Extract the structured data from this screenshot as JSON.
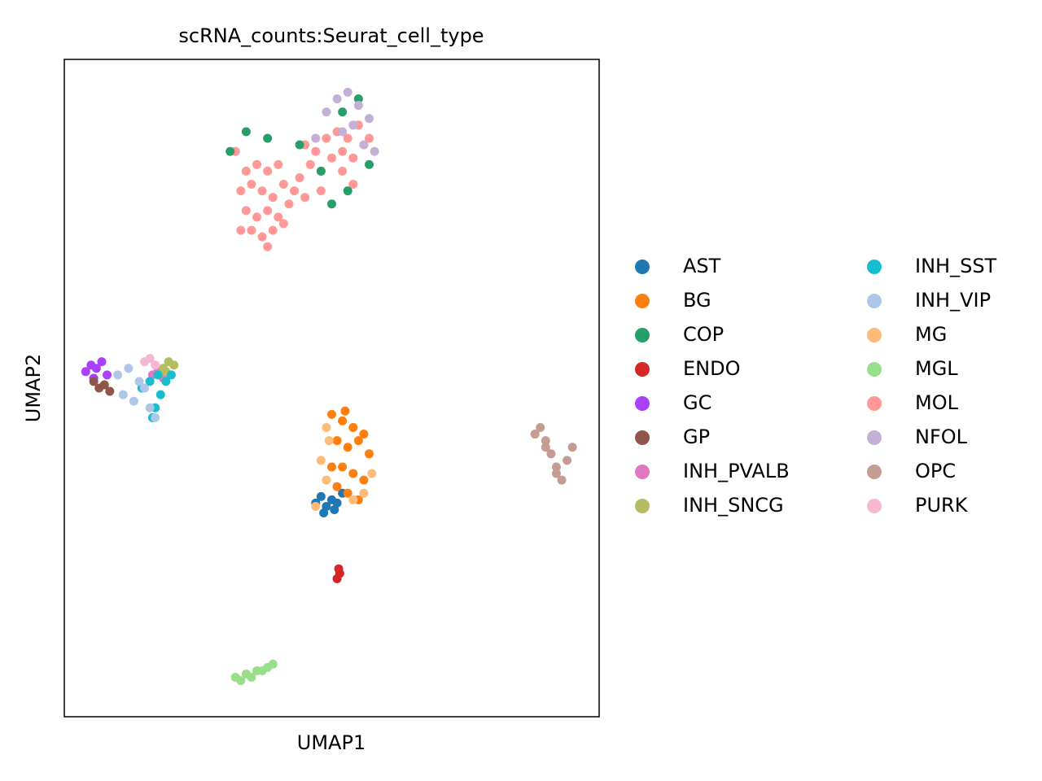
{
  "chart_data": {
    "type": "scatter",
    "title": "scRNA_counts:Seurat_cell_type",
    "x_label": "UMAP1",
    "y_label": "UMAP2",
    "xlim": [
      0,
      100
    ],
    "ylim": [
      0,
      100
    ],
    "legend": "right",
    "series": [
      {
        "name": "AST",
        "color": "#1f77b4",
        "x": [
          47,
          48,
          49,
          50,
          51,
          52,
          48.5,
          50.5
        ],
        "values": [
          32.5,
          33.5,
          32,
          33,
          32.5,
          34,
          31,
          31.5
        ]
      },
      {
        "name": "BG",
        "color": "#ff7f0e",
        "x": [
          50,
          52,
          54,
          56,
          51,
          53,
          55,
          57,
          50,
          52,
          54,
          56,
          51,
          53,
          55,
          52.5
        ],
        "values": [
          46,
          45,
          44,
          43,
          42,
          41,
          42,
          40,
          38,
          38,
          37,
          36,
          35,
          34,
          33,
          46.5
        ]
      },
      {
        "name": "COP",
        "color": "#279e68",
        "x": [
          31,
          34,
          38,
          44,
          48,
          52,
          55,
          57,
          53,
          50
        ],
        "values": [
          86,
          89,
          88,
          87,
          83,
          92,
          94,
          84,
          80,
          78
        ]
      },
      {
        "name": "ENDO",
        "color": "#d62728",
        "x": [
          51,
          51.5,
          51.3
        ],
        "values": [
          21,
          21.8,
          22.5
        ]
      },
      {
        "name": "GC",
        "color": "#aa40fc",
        "x": [
          4,
          5,
          6,
          7,
          8,
          5.5
        ],
        "values": [
          52.5,
          53.5,
          53,
          54,
          52,
          51.5
        ]
      },
      {
        "name": "GP",
        "color": "#8c564b",
        "x": [
          5.5,
          6.5,
          7.5,
          8.5
        ],
        "values": [
          51,
          50,
          50.5,
          49.5
        ]
      },
      {
        "name": "INH_PVALB",
        "color": "#e377c2",
        "x": [
          16.5,
          17.5,
          18.5
        ],
        "values": [
          52,
          52.5,
          51.5
        ]
      },
      {
        "name": "INH_SNCG",
        "color": "#b5bd61",
        "x": [
          18.5,
          19.5,
          20.5,
          19
        ],
        "values": [
          53,
          54,
          53.5,
          52.5
        ]
      },
      {
        "name": "INH_SST",
        "color": "#17becf",
        "x": [
          14.5,
          16,
          17.5,
          19,
          20,
          18,
          17,
          16.5
        ],
        "values": [
          50,
          51,
          52,
          51,
          52,
          49,
          47,
          45.5
        ]
      },
      {
        "name": "INH_VIP",
        "color": "#aec7e8",
        "x": [
          10,
          12,
          14,
          11,
          13,
          15,
          16,
          17
        ],
        "values": [
          52,
          53,
          51,
          49,
          48,
          50,
          47,
          45.5
        ]
      },
      {
        "name": "MG",
        "color": "#ffbb78",
        "x": [
          49,
          49.5,
          48,
          57.5,
          56,
          54,
          49,
          47
        ],
        "values": [
          44,
          42,
          39,
          37,
          34,
          33,
          36,
          32
        ]
      },
      {
        "name": "MGL",
        "color": "#98df8a",
        "x": [
          32,
          33,
          34,
          35,
          36,
          37,
          38,
          39
        ],
        "values": [
          6,
          5.5,
          6.5,
          6,
          7,
          7,
          7.5,
          8
        ]
      },
      {
        "name": "MOL",
        "color": "#ff9896",
        "x": [
          33,
          35,
          37,
          39,
          41,
          34,
          36,
          38,
          40,
          42,
          33,
          35,
          37,
          39,
          41,
          34,
          36,
          38,
          40,
          32,
          44,
          46,
          48,
          50,
          52,
          54,
          56,
          45,
          47,
          49,
          51,
          53,
          55,
          57,
          43,
          45,
          52,
          54,
          48,
          38
        ],
        "values": [
          74,
          74,
          73,
          74,
          75,
          77,
          76,
          77,
          76,
          78,
          80,
          81,
          80,
          79,
          81,
          83,
          84,
          83,
          84,
          86,
          82,
          84,
          83,
          85,
          86,
          85,
          87,
          87,
          86,
          88,
          89,
          88,
          90,
          88,
          80,
          79,
          83,
          81,
          80,
          71.5
        ]
      },
      {
        "name": "NFOL",
        "color": "#c5b0d5",
        "x": [
          49,
          51,
          53,
          55,
          57,
          52,
          54,
          56,
          47,
          58
        ],
        "values": [
          92,
          94,
          95,
          93,
          91,
          89,
          90,
          87,
          88,
          86
        ]
      },
      {
        "name": "OPC",
        "color": "#c49c94",
        "x": [
          88,
          89,
          90,
          91,
          92,
          93,
          94,
          95,
          90,
          92
        ],
        "values": [
          43,
          44,
          42,
          40,
          38,
          36,
          39,
          41,
          41,
          37
        ]
      },
      {
        "name": "PURK",
        "color": "#f7b6d2",
        "x": [
          15,
          16,
          17
        ],
        "values": [
          54,
          54.5,
          53.5
        ]
      }
    ]
  }
}
